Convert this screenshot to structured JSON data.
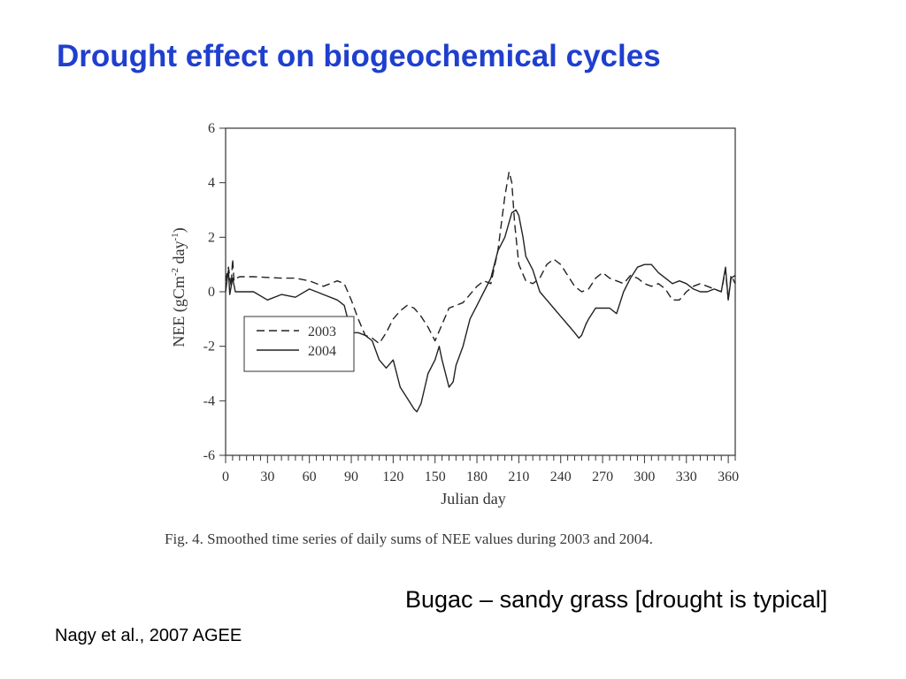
{
  "slide": {
    "title": "Drought effect on biogeochemical cycles",
    "caption": "Fig. 4.  Smoothed time series of daily sums of NEE values during 2003 and 2004.",
    "citation": "Nagy et al., 2007 AGEE",
    "site_note": "Bugac – sandy grass [drought is typical]",
    "title_color": "#1f3fce"
  },
  "chart_data": {
    "type": "line",
    "xlabel": "Julian day",
    "ylabel": "NEE (gCm-2 day-1)",
    "xlim": [
      0,
      365
    ],
    "ylim": [
      -6,
      6
    ],
    "xticks": [
      0,
      30,
      60,
      90,
      120,
      150,
      180,
      210,
      240,
      270,
      300,
      330,
      360
    ],
    "yticks": [
      -6,
      -4,
      -2,
      0,
      2,
      4,
      6
    ],
    "grid": false,
    "legend": "left",
    "series": [
      {
        "name": "2003",
        "style": "dashed",
        "x": [
          0,
          2,
          4,
          5,
          6,
          8,
          10,
          20,
          40,
          50,
          60,
          70,
          80,
          85,
          90,
          95,
          100,
          105,
          110,
          115,
          120,
          125,
          130,
          135,
          140,
          145,
          150,
          155,
          160,
          165,
          170,
          175,
          180,
          185,
          190,
          195,
          200,
          203,
          205,
          207,
          210,
          215,
          220,
          225,
          230,
          235,
          240,
          245,
          250,
          255,
          260,
          265,
          270,
          275,
          280,
          285,
          290,
          295,
          300,
          305,
          310,
          315,
          320,
          325,
          330,
          335,
          340,
          345,
          350,
          355,
          358,
          360,
          362,
          365
        ],
        "values": [
          0.4,
          0.9,
          0.2,
          1.2,
          0.4,
          0.5,
          0.55,
          0.55,
          0.5,
          0.5,
          0.4,
          0.2,
          0.4,
          0.3,
          -0.3,
          -1.0,
          -1.6,
          -1.7,
          -1.9,
          -1.5,
          -1.0,
          -0.7,
          -0.5,
          -0.6,
          -0.9,
          -1.3,
          -1.8,
          -1.2,
          -0.6,
          -0.5,
          -0.4,
          -0.1,
          0.2,
          0.4,
          0.3,
          1.5,
          3.5,
          4.4,
          4.0,
          2.5,
          1.0,
          0.4,
          0.3,
          0.5,
          1.0,
          1.2,
          1.0,
          0.6,
          0.2,
          0.0,
          0.1,
          0.5,
          0.7,
          0.5,
          0.4,
          0.3,
          0.6,
          0.5,
          0.3,
          0.2,
          0.3,
          0.1,
          -0.3,
          -0.3,
          0.0,
          0.2,
          0.3,
          0.2,
          0.1,
          0.0,
          0.8,
          -0.3,
          0.6,
          0.3
        ]
      },
      {
        "name": "2004",
        "style": "solid",
        "x": [
          0,
          2,
          3,
          5,
          7,
          10,
          20,
          30,
          40,
          50,
          60,
          70,
          80,
          85,
          90,
          95,
          100,
          105,
          110,
          115,
          120,
          125,
          130,
          135,
          137,
          140,
          145,
          150,
          153,
          155,
          160,
          163,
          165,
          170,
          175,
          180,
          185,
          190,
          195,
          200,
          205,
          208,
          210,
          213,
          215,
          220,
          225,
          230,
          235,
          240,
          245,
          250,
          253,
          255,
          258,
          260,
          265,
          270,
          275,
          280,
          285,
          290,
          295,
          300,
          305,
          310,
          315,
          320,
          325,
          330,
          335,
          340,
          345,
          350,
          355,
          358,
          360,
          362,
          365
        ],
        "values": [
          0.0,
          0.8,
          -0.1,
          0.5,
          0.0,
          0.0,
          0.0,
          -0.3,
          -0.1,
          -0.2,
          0.1,
          -0.1,
          -0.3,
          -0.5,
          -1.5,
          -1.5,
          -1.6,
          -1.8,
          -2.5,
          -2.8,
          -2.5,
          -3.5,
          -3.9,
          -4.3,
          -4.4,
          -4.1,
          -3.0,
          -2.5,
          -2.0,
          -2.5,
          -3.5,
          -3.3,
          -2.7,
          -2.0,
          -1.0,
          -0.5,
          0.0,
          0.5,
          1.5,
          2.0,
          2.9,
          3.0,
          2.8,
          2.0,
          1.3,
          0.8,
          0.0,
          -0.3,
          -0.6,
          -0.9,
          -1.2,
          -1.5,
          -1.7,
          -1.6,
          -1.2,
          -1.0,
          -0.6,
          -0.6,
          -0.6,
          -0.8,
          0.0,
          0.5,
          0.9,
          1.0,
          1.0,
          0.7,
          0.5,
          0.3,
          0.4,
          0.3,
          0.1,
          0.0,
          0.0,
          0.1,
          0.0,
          0.9,
          -0.3,
          0.5,
          0.6
        ]
      }
    ]
  }
}
